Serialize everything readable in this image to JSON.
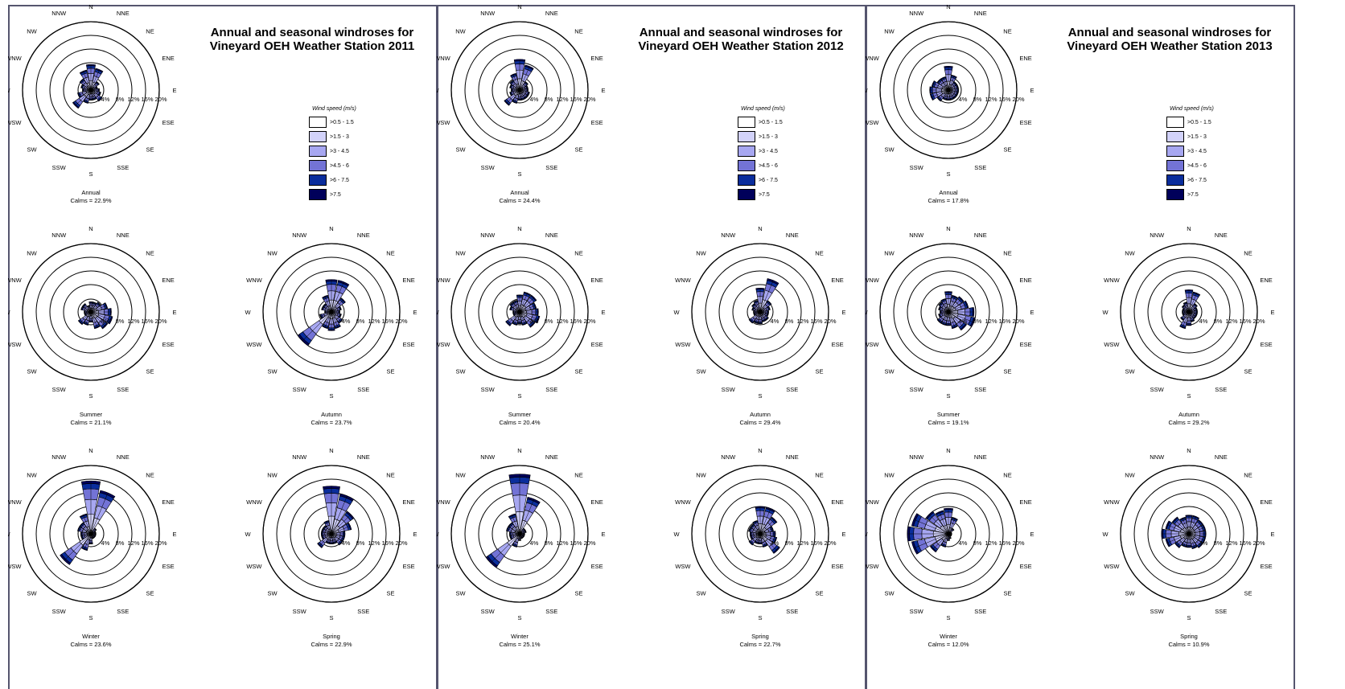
{
  "colors": {
    "frame": "#55556e",
    "bins": [
      "#ffffff",
      "#d2d2fa",
      "#a7a7f1",
      "#7373d6",
      "#0a2d9c",
      "#00005a"
    ]
  },
  "legend": {
    "title": "Wind speed (m/s)",
    "items": [
      ">0.5 - 1.5",
      ">1.5 - 3",
      ">3 - 4.5",
      ">4.5 - 6",
      ">6 - 7.5",
      ">7.5"
    ]
  },
  "directions": [
    "N",
    "NNE",
    "NE",
    "ENE",
    "E",
    "ESE",
    "SE",
    "SSE",
    "S",
    "SSW",
    "SW",
    "WSW",
    "W",
    "WNW",
    "NW",
    "NNW"
  ],
  "ring_labels": [
    "4%",
    "8%",
    "12%",
    "16%",
    "20%"
  ],
  "panels": [
    {
      "title_line1": "Annual and seasonal windroses for",
      "title_line2": "Vineyard OEH Weather Station 2011"
    },
    {
      "title_line1": "Annual and seasonal windroses for",
      "title_line2": "Vineyard OEH Weather Station 2012"
    },
    {
      "title_line1": "Annual and seasonal windroses for",
      "title_line2": "Vineyard OEH Weather Station 2013"
    }
  ],
  "chart_data": [
    {
      "type": "windrose",
      "year": "2011",
      "speed_bins": [
        ">0.5 - 1.5",
        ">1.5 - 3",
        ">3 - 4.5",
        ">4.5 - 6",
        ">6 - 7.5",
        ">7.5"
      ],
      "rmax": 20,
      "roses": [
        {
          "name": "Annual",
          "calms": "Calms = 22.9%",
          "totals": [
            7.5,
            6.5,
            3,
            2,
            2.5,
            3,
            4,
            3,
            3,
            4,
            6.5,
            4,
            2.5,
            3,
            4,
            6
          ]
        },
        {
          "name": "Summer",
          "calms": "Calms = 21.1%",
          "totals": [
            3,
            3,
            3.5,
            5,
            6,
            6.5,
            6,
            5,
            3,
            4,
            4.5,
            2,
            2,
            3,
            3,
            2
          ]
        },
        {
          "name": "Autumn",
          "calms": "Calms = 23.7%",
          "totals": [
            9.5,
            9.5,
            5,
            3,
            2.5,
            3,
            4,
            5,
            5.5,
            5,
            12,
            3.5,
            2,
            3,
            3,
            5
          ]
        },
        {
          "name": "Winter",
          "calms": "Calms = 23.6%",
          "totals": [
            15.5,
            13,
            2,
            1.5,
            1.5,
            1.5,
            1.5,
            1.5,
            3,
            5,
            11,
            3,
            3,
            4,
            4,
            6
          ]
        },
        {
          "name": "Spring",
          "calms": "Calms = 22.9%",
          "totals": [
            14,
            12,
            8,
            6,
            4,
            4,
            4,
            3,
            3,
            3,
            5,
            3,
            3,
            3,
            3,
            4
          ]
        }
      ]
    },
    {
      "type": "windrose",
      "year": "2012",
      "speed_bins": [
        ">0.5 - 1.5",
        ">1.5 - 3",
        ">3 - 4.5",
        ">4.5 - 6",
        ">6 - 7.5",
        ">7.5"
      ],
      "rmax": 20,
      "roses": [
        {
          "name": "Annual",
          "calms": "Calms = 24.4%",
          "totals": [
            9,
            7.5,
            3,
            2.5,
            2.5,
            3,
            3,
            3,
            3,
            4,
            5.5,
            3,
            2.5,
            3,
            3.5,
            5
          ]
        },
        {
          "name": "Summer",
          "calms": "Calms = 20.4%",
          "totals": [
            5,
            6,
            6,
            5,
            5.5,
            6,
            5.5,
            4,
            3.5,
            4,
            5,
            2,
            2,
            3,
            3.5,
            3.5
          ]
        },
        {
          "name": "Autumn",
          "calms": "Calms = 29.4%",
          "totals": [
            7,
            10,
            4,
            3,
            2.5,
            2.5,
            3,
            3,
            3.5,
            3.5,
            4,
            2,
            2,
            2.5,
            3,
            3.5
          ]
        },
        {
          "name": "Winter",
          "calms": "Calms = 25.1%",
          "totals": [
            17.5,
            11,
            2,
            2,
            1.5,
            1.5,
            1.5,
            1.5,
            2,
            4,
            12,
            3,
            3,
            4,
            4,
            6
          ]
        },
        {
          "name": "Spring",
          "calms": "Calms = 22.7%",
          "totals": [
            8,
            8,
            6,
            4,
            4.5,
            5,
            7,
            4,
            3,
            3,
            4,
            3,
            3,
            3.5,
            3.5,
            4
          ]
        }
      ]
    },
    {
      "type": "windrose",
      "year": "2013",
      "speed_bins": [
        ">0.5 - 1.5",
        ">1.5 - 3",
        ">3 - 4.5",
        ">4.5 - 6",
        ">6 - 7.5",
        ">7.5"
      ],
      "rmax": 20,
      "roses": [
        {
          "name": "Annual",
          "calms": "Calms = 17.8%",
          "totals": [
            7,
            4.5,
            3,
            3,
            3,
            3,
            3,
            3,
            3,
            3,
            4,
            5.5,
            5.5,
            5,
            4,
            4
          ]
        },
        {
          "name": "Summer",
          "calms": "Calms = 19.1%",
          "totals": [
            6,
            5,
            5.5,
            6,
            7.5,
            8,
            6.5,
            5,
            4,
            4,
            4,
            3,
            2.5,
            3,
            3.5,
            4
          ]
        },
        {
          "name": "Autumn",
          "calms": "Calms = 29.2%",
          "totals": [
            6.5,
            6,
            3,
            2.5,
            2.5,
            2.5,
            2.5,
            3,
            4,
            5,
            3,
            2,
            2,
            2,
            2.5,
            3
          ]
        },
        {
          "name": "Winter",
          "calms": "Calms = 12.0%",
          "totals": [
            7.5,
            5,
            2,
            1,
            1,
            1,
            1,
            1.5,
            2,
            4,
            6.5,
            11,
            12,
            11,
            8,
            7
          ]
        },
        {
          "name": "Spring",
          "calms": "Calms = 10.9%",
          "totals": [
            5.5,
            5.5,
            5,
            5,
            5,
            5,
            5,
            4.5,
            4,
            4,
            5,
            7,
            8,
            7,
            6,
            5
          ]
        }
      ]
    }
  ]
}
